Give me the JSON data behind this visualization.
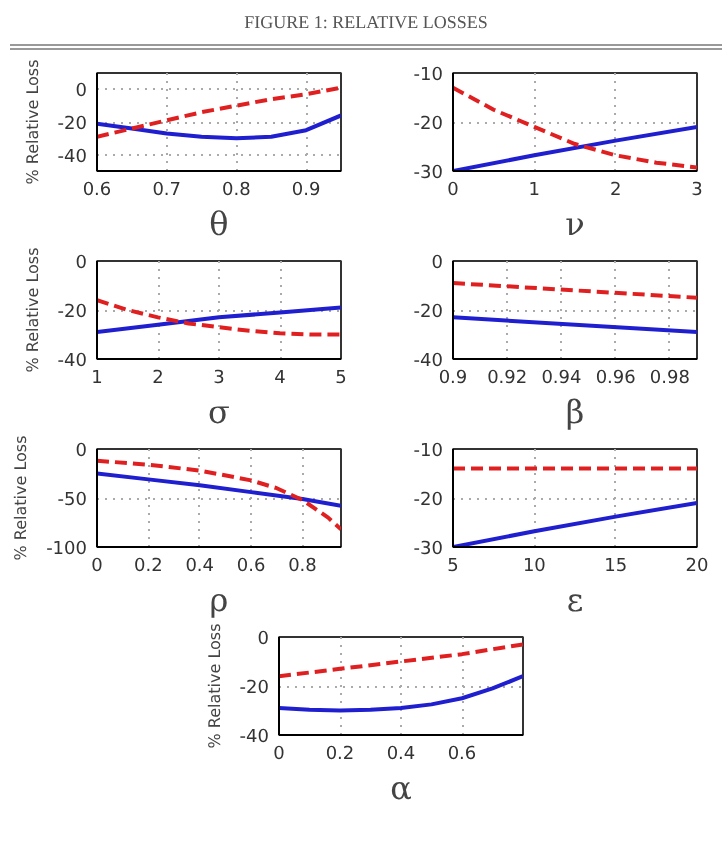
{
  "chart_data": [
    {
      "type": "line",
      "title": "FIGURE 1: RELATIVE LOSSES",
      "xlabel": "θ",
      "ylabel": "% Relative Loss",
      "xlim": [
        0.6,
        0.95
      ],
      "ylim": [
        -50,
        10
      ],
      "xticks": [
        0.6,
        0.7,
        0.8,
        0.9
      ],
      "yticks": [
        -40,
        -20,
        0
      ],
      "grid": true,
      "series": [
        {
          "color": "#1f1fd0",
          "line_style": "solid",
          "x": [
            0.6,
            0.65,
            0.7,
            0.75,
            0.8,
            0.85,
            0.9,
            0.95
          ],
          "values": [
            -21,
            -24,
            -27,
            -29,
            -30,
            -29,
            -25,
            -16
          ]
        },
        {
          "color": "#e02020",
          "line_style": "dashed",
          "x": [
            0.6,
            0.65,
            0.7,
            0.75,
            0.8,
            0.85,
            0.9,
            0.95
          ],
          "values": [
            -29,
            -24,
            -19,
            -14,
            -10,
            -6,
            -3,
            1
          ]
        }
      ]
    },
    {
      "type": "line",
      "xlabel": "ν",
      "xlim": [
        0,
        3
      ],
      "ylim": [
        -30,
        -10
      ],
      "xticks": [
        0,
        1,
        2,
        3
      ],
      "yticks": [
        -30,
        -20,
        -10
      ],
      "grid": true,
      "series": [
        {
          "color": "#1f1fd0",
          "line_style": "solid",
          "x": [
            0,
            1,
            2,
            3
          ],
          "values": [
            -30,
            -26.8,
            -23.8,
            -21
          ]
        },
        {
          "color": "#e02020",
          "line_style": "dashed",
          "x": [
            0,
            0.5,
            1,
            1.5,
            2,
            2.5,
            3
          ],
          "values": [
            -13,
            -17.5,
            -21,
            -24.5,
            -26.8,
            -28.3,
            -29.3
          ]
        }
      ]
    },
    {
      "type": "line",
      "xlabel": "σ",
      "ylabel": "% Relative Loss",
      "xlim": [
        1,
        5
      ],
      "ylim": [
        -40,
        0
      ],
      "xticks": [
        1,
        2,
        3,
        4,
        5
      ],
      "yticks": [
        -40,
        -20,
        0
      ],
      "grid": true,
      "series": [
        {
          "color": "#1f1fd0",
          "line_style": "solid",
          "x": [
            1,
            2,
            3,
            4,
            5
          ],
          "values": [
            -29,
            -26,
            -23,
            -21,
            -19
          ]
        },
        {
          "color": "#e02020",
          "line_style": "dashed",
          "x": [
            1,
            1.5,
            2,
            2.5,
            3,
            3.5,
            4,
            4.5,
            5
          ],
          "values": [
            -16,
            -20,
            -23,
            -25.5,
            -27,
            -28.5,
            -29.5,
            -30,
            -30
          ]
        }
      ]
    },
    {
      "type": "line",
      "xlabel": "β",
      "xlim": [
        0.9,
        0.99
      ],
      "ylim": [
        -40,
        0
      ],
      "xticks": [
        0.9,
        0.92,
        0.94,
        0.96,
        0.98
      ],
      "yticks": [
        -40,
        -20,
        0
      ],
      "grid": true,
      "series": [
        {
          "color": "#1f1fd0",
          "line_style": "solid",
          "x": [
            0.9,
            0.99
          ],
          "values": [
            -23,
            -29
          ]
        },
        {
          "color": "#e02020",
          "line_style": "dashed",
          "x": [
            0.9,
            0.99
          ],
          "values": [
            -9,
            -15
          ]
        }
      ]
    },
    {
      "type": "line",
      "xlabel": "ρ",
      "ylabel": "% Relative Loss",
      "xlim": [
        0,
        0.95
      ],
      "ylim": [
        -100,
        0
      ],
      "xticks": [
        0,
        0.2,
        0.4,
        0.6,
        0.8
      ],
      "yticks": [
        -100,
        -50,
        0
      ],
      "grid": true,
      "series": [
        {
          "color": "#1f1fd0",
          "line_style": "solid",
          "x": [
            0,
            0.2,
            0.4,
            0.6,
            0.8,
            0.95
          ],
          "values": [
            -25,
            -31,
            -37,
            -44,
            -51,
            -58
          ]
        },
        {
          "color": "#e02020",
          "line_style": "dashed",
          "x": [
            0,
            0.2,
            0.4,
            0.6,
            0.7,
            0.8,
            0.9,
            0.95
          ],
          "values": [
            -12,
            -16,
            -22,
            -32,
            -40,
            -52,
            -70,
            -82
          ]
        }
      ]
    },
    {
      "type": "line",
      "xlabel": "ε",
      "xlim": [
        5,
        20
      ],
      "ylim": [
        -30,
        -10
      ],
      "xticks": [
        5,
        10,
        15,
        20
      ],
      "yticks": [
        -30,
        -20,
        -10
      ],
      "grid": true,
      "series": [
        {
          "color": "#1f1fd0",
          "line_style": "solid",
          "x": [
            5,
            10,
            15,
            20
          ],
          "values": [
            -30,
            -26.8,
            -23.8,
            -21
          ]
        },
        {
          "color": "#e02020",
          "line_style": "dashed",
          "x": [
            5,
            20
          ],
          "values": [
            -14,
            -14
          ]
        }
      ]
    },
    {
      "type": "line",
      "xlabel": "α",
      "ylabel": "% Relative Loss",
      "xlim": [
        0,
        0.8
      ],
      "ylim": [
        -40,
        0
      ],
      "xticks": [
        0,
        0.2,
        0.4,
        0.6
      ],
      "yticks": [
        -40,
        -20,
        0
      ],
      "grid": true,
      "series": [
        {
          "color": "#1f1fd0",
          "line_style": "solid",
          "x": [
            0,
            0.1,
            0.2,
            0.3,
            0.4,
            0.5,
            0.6,
            0.7,
            0.8
          ],
          "values": [
            -29,
            -29.7,
            -30,
            -29.7,
            -29,
            -27.5,
            -25,
            -21,
            -16
          ]
        },
        {
          "color": "#e02020",
          "line_style": "dashed",
          "x": [
            0,
            0.2,
            0.4,
            0.6,
            0.8
          ],
          "values": [
            -16,
            -13,
            -10,
            -7,
            -3
          ]
        }
      ]
    }
  ]
}
